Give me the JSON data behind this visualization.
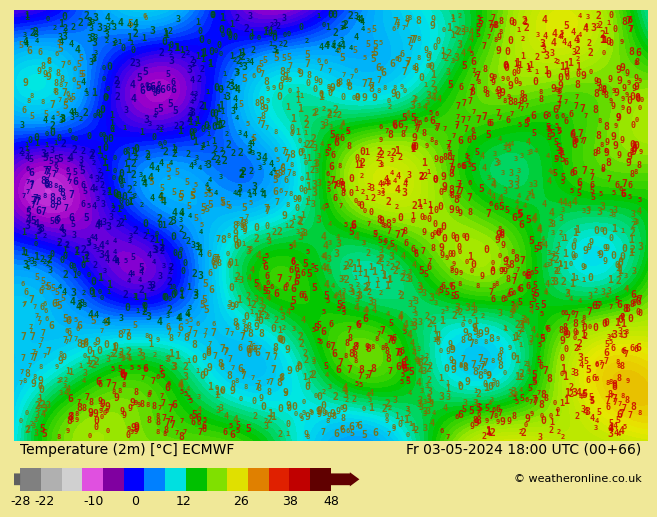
{
  "title_left": "Temperature (2m) [°C] ECMWF",
  "title_right": "Fr 03-05-2024 18:00 UTC (00+66)",
  "copyright": "© weatheronline.co.uk",
  "colorbar_ticks": [
    -28,
    -22,
    -10,
    0,
    12,
    26,
    38,
    48
  ],
  "colorbar_colors": [
    "#a0a0a0",
    "#c8c8c8",
    "#e0e0e0",
    "#e878e8",
    "#a000c8",
    "#0000ff",
    "#00a0ff",
    "#00e8e8",
    "#00c800",
    "#a0e800",
    "#e8e800",
    "#e8a000",
    "#e82800",
    "#c80000",
    "#800000"
  ],
  "bg_color": "#f0f0c8",
  "map_bg": "#c8e87a",
  "text_color": "#000000",
  "colorbar_label_fontsize": 9,
  "title_fontsize": 10,
  "copyright_fontsize": 8,
  "map_numbers_color_warm": "#c80000",
  "map_numbers_color_cold": "#000000",
  "map_numbers_color_green": "#00a000",
  "seed": 42,
  "num_points": 3000
}
